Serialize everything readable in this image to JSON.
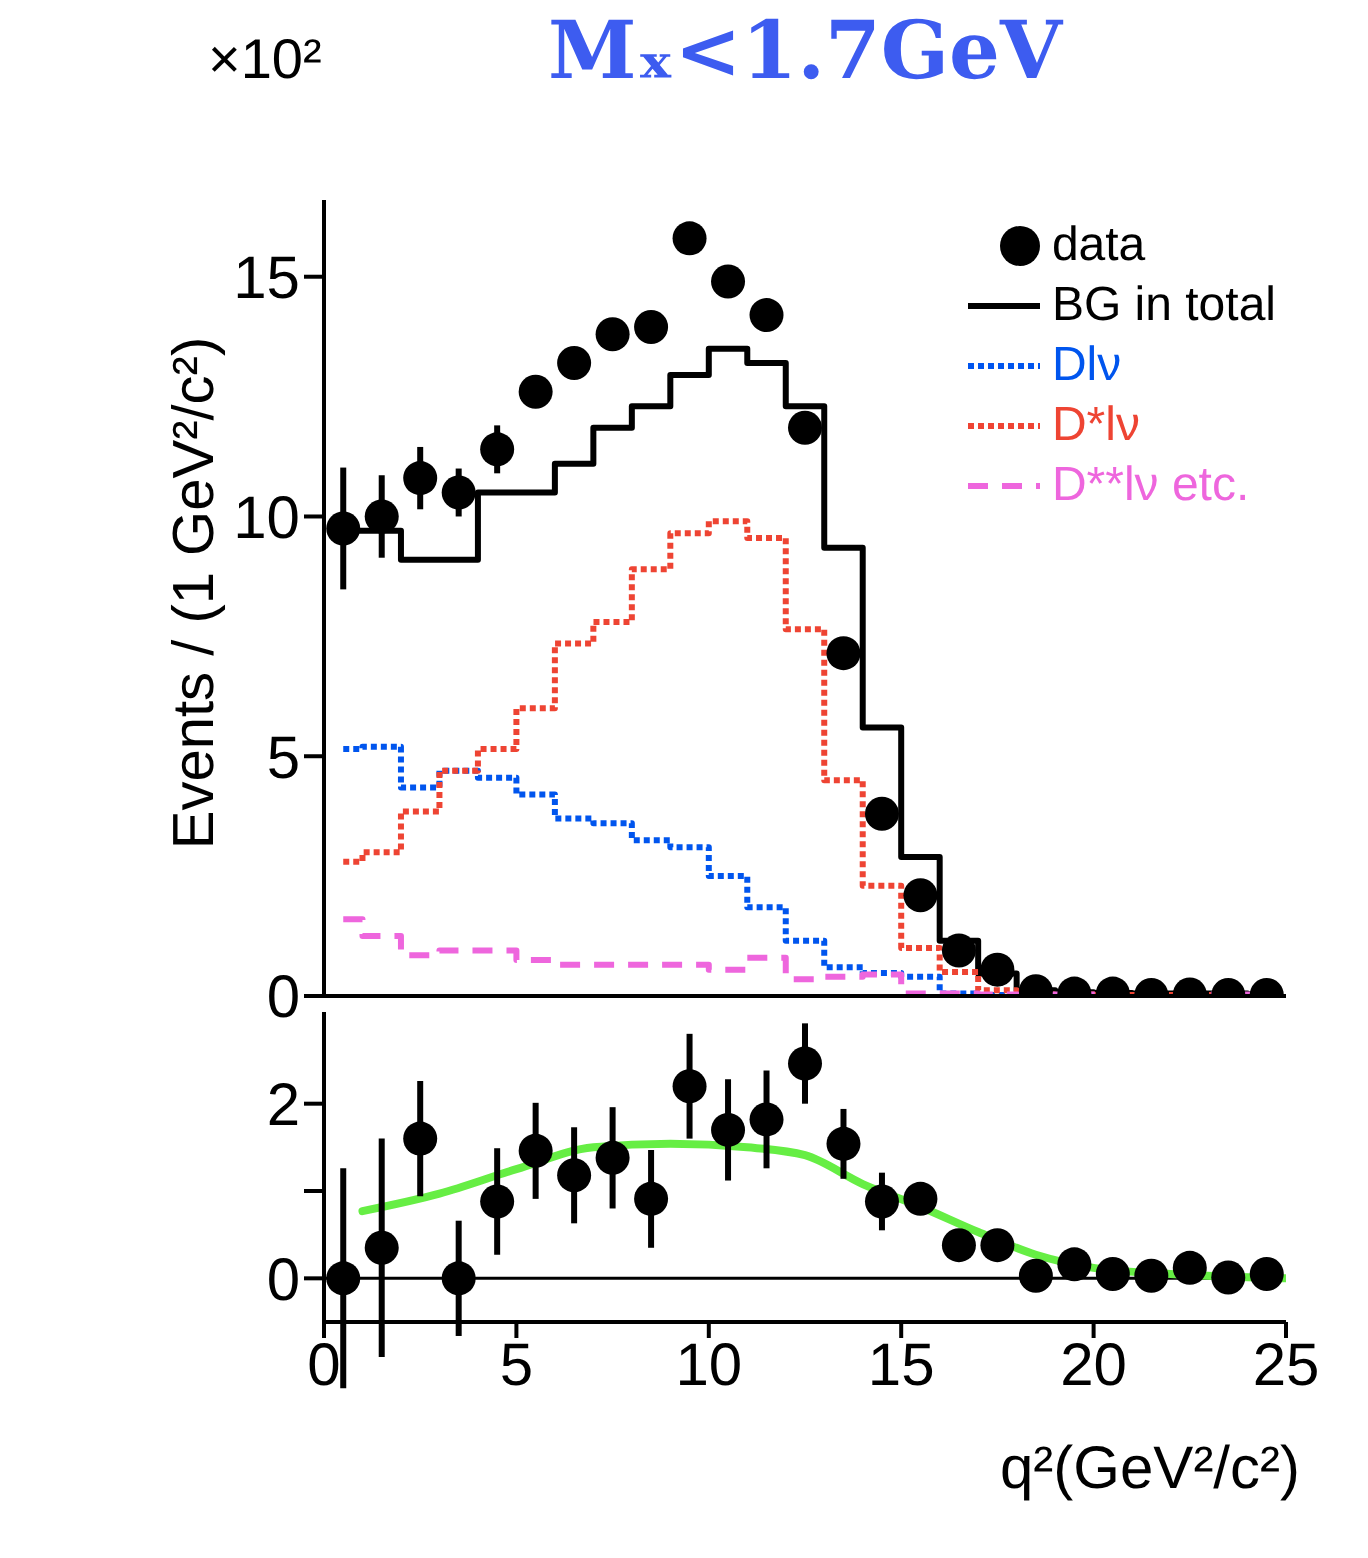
{
  "chart_data": [
    {
      "type": "step",
      "title": "Mₓ<1.7GeV",
      "ylabel": "Events / (1 GeV²/c²)",
      "annotations": [
        "×10²"
      ],
      "x": [
        0.5,
        1.5,
        2.5,
        3.5,
        4.5,
        5.5,
        6.5,
        7.5,
        8.5,
        9.5,
        10.5,
        11.5,
        12.5,
        13.5,
        14.5,
        15.5,
        16.5,
        17.5,
        18.5,
        19.5,
        20.5,
        21.5,
        22.5,
        23.5,
        24.5
      ],
      "xlim": [
        0,
        25
      ],
      "xticks": [
        0,
        5,
        10,
        15,
        20,
        25
      ],
      "ylim": [
        0,
        16.6
      ],
      "yticks": [
        0,
        5,
        10,
        15
      ],
      "tick_labels": "y",
      "legend": "top right",
      "series": [
        {
          "name": "data",
          "type": "scatter",
          "marker": "circle",
          "color": "#000000",
          "values": [
            9.75,
            10.0,
            10.8,
            10.5,
            11.4,
            12.6,
            13.2,
            13.8,
            13.95,
            15.8,
            14.9,
            14.2,
            11.85,
            7.15,
            3.8,
            2.1,
            0.95,
            0.55,
            0.1,
            0.05,
            0.05,
            0.02,
            0.03,
            0.02,
            0.02
          ],
          "errors": [
            1.27,
            0.86,
            0.65,
            0.5,
            0.5,
            null,
            null,
            null,
            null,
            null,
            null,
            null,
            null,
            null,
            null,
            null,
            null,
            null,
            null,
            null,
            null,
            null,
            null,
            null,
            null
          ]
        },
        {
          "name": "BG in total",
          "line_style": "solid",
          "color": "#000000",
          "values": [
            9.7,
            9.7,
            9.1,
            9.1,
            10.5,
            10.5,
            11.1,
            11.85,
            12.3,
            12.95,
            13.5,
            13.2,
            12.3,
            9.35,
            5.6,
            2.9,
            1.15,
            0.47,
            0.12,
            0.08,
            0.06,
            0.05,
            0.05,
            0.05,
            0.03
          ]
        },
        {
          "name": "Dlν",
          "line_style": "dotted",
          "color": "#0055ee",
          "values": [
            5.15,
            5.2,
            4.35,
            4.7,
            4.55,
            4.2,
            3.7,
            3.6,
            3.25,
            3.1,
            2.5,
            1.85,
            1.15,
            0.6,
            0.48,
            0.4,
            0.05,
            0.02,
            0.02,
            0.02,
            null,
            null,
            null,
            null,
            null
          ]
        },
        {
          "name": "D*lν",
          "line_style": "dotted",
          "color": "#ee4433",
          "values": [
            2.8,
            3.0,
            3.85,
            4.7,
            5.15,
            6.0,
            7.35,
            7.8,
            8.9,
            9.65,
            9.9,
            9.55,
            7.65,
            4.5,
            2.3,
            1.0,
            0.5,
            0.12,
            0.03,
            0.03,
            0.02,
            0.02,
            0.02,
            0.02,
            0.02
          ]
        },
        {
          "name": "D**lν etc.",
          "line_style": "dashed",
          "color": "#ee66dd",
          "values": [
            1.6,
            1.25,
            0.85,
            0.95,
            0.95,
            0.75,
            0.65,
            0.65,
            0.65,
            0.65,
            0.55,
            0.8,
            0.35,
            0.4,
            0.45,
            0.05,
            0.05,
            0.03,
            0.03,
            0.03,
            0.03,
            0.03,
            0.03,
            0.03,
            0.03
          ]
        }
      ]
    },
    {
      "type": "scatter",
      "xlabel": "q²(GeV²/c²)",
      "x": [
        0.5,
        1.5,
        2.5,
        3.5,
        4.5,
        5.5,
        6.5,
        7.5,
        8.5,
        9.5,
        10.5,
        11.5,
        12.5,
        13.5,
        14.5,
        15.5,
        16.5,
        17.5,
        18.5,
        19.5,
        20.5,
        21.5,
        22.5,
        23.5,
        24.5
      ],
      "xlim": [
        0,
        25
      ],
      "xticks": [
        0,
        5,
        10,
        15,
        20,
        25
      ],
      "ylim": [
        -0.5,
        3.05
      ],
      "yticks": [
        0,
        {
          "value": 1,
          "label": null
        },
        2
      ],
      "ref_lines": [
        {
          "axis": "y",
          "value": 0,
          "color": "#000000"
        }
      ],
      "series": [
        {
          "type": "line",
          "color": "#66ee44",
          "x": [
            1,
            3,
            5,
            7,
            9,
            11,
            12.5,
            14,
            15.5,
            17,
            18.5,
            20,
            22,
            25
          ],
          "values": [
            0.77,
            0.97,
            1.25,
            1.5,
            1.54,
            1.5,
            1.41,
            1.08,
            0.82,
            0.53,
            0.27,
            0.12,
            0.05,
            0.0
          ]
        },
        {
          "marker": "circle",
          "color": "#000000",
          "values": [
            0,
            0.35,
            1.6,
            0,
            0.88,
            1.46,
            1.18,
            1.38,
            0.91,
            2.2,
            1.7,
            1.82,
            2.46,
            1.54,
            0.88,
            0.91,
            0.38,
            0.38,
            0.03,
            0.16,
            0.05,
            0.03,
            0.12,
            0.01,
            0.05
          ],
          "errors": [
            1.26,
            1.25,
            0.66,
            0.66,
            0.61,
            0.55,
            0.55,
            0.58,
            0.56,
            0.6,
            0.58,
            0.56,
            0.46,
            0.4,
            0.33,
            null,
            null,
            null,
            null,
            null,
            null,
            null,
            null,
            null,
            null
          ]
        }
      ]
    }
  ]
}
